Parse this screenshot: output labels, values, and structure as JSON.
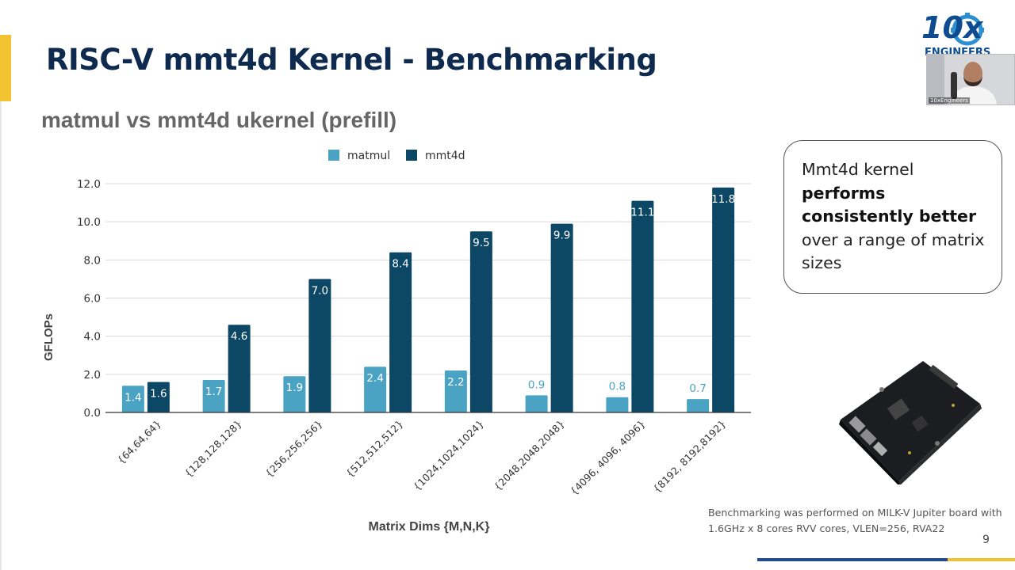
{
  "slide": {
    "title": "RISC-V mmt4d Kernel - Benchmarking",
    "subtitle": "matmul vs mmt4d ukernel (prefill)",
    "page_number": "9",
    "logo": {
      "line1": "10x",
      "line2": "ENGINEERS"
    },
    "webcam": {
      "name": "10xEngineers"
    },
    "callout": {
      "part1": "Mmt4d kernel ",
      "bold": "performs consistently better",
      "part2": " over a range of matrix sizes"
    },
    "footnote": "Benchmarking was performed on MILK-V Jupiter board with 1.6GHz x 8 cores RVV cores, VLEN=256, RVA22",
    "colors": {
      "title": "#0e2a4e",
      "accent": "#f2c230",
      "matmul": "#4ba3c3",
      "mmt4d": "#0d4766"
    }
  },
  "chart_data": {
    "type": "bar",
    "categories": [
      "{64,64,64}",
      "{128,128,128}",
      "{256,256,256}",
      "{512,512,512}",
      "{1024,1024,1024}",
      "{2048,2048,2048}",
      "{4096, 4096, 4096}",
      "{8192, 8192,8192}"
    ],
    "series": [
      {
        "name": "matmul",
        "color": "#4ba3c3",
        "values": [
          1.4,
          1.7,
          1.9,
          2.4,
          2.2,
          0.9,
          0.8,
          0.7
        ]
      },
      {
        "name": "mmt4d",
        "color": "#0d4766",
        "values": [
          1.6,
          4.6,
          7.0,
          8.4,
          9.5,
          9.9,
          11.1,
          11.8
        ]
      }
    ],
    "xlabel": "Matrix Dims {M,N,K}",
    "ylabel": "GFLOPs",
    "ylim": [
      0,
      12
    ],
    "yticks": [
      "0.0",
      "2.0",
      "4.0",
      "6.0",
      "8.0",
      "10.0",
      "12.0"
    ],
    "grid": true,
    "legend": "top"
  }
}
